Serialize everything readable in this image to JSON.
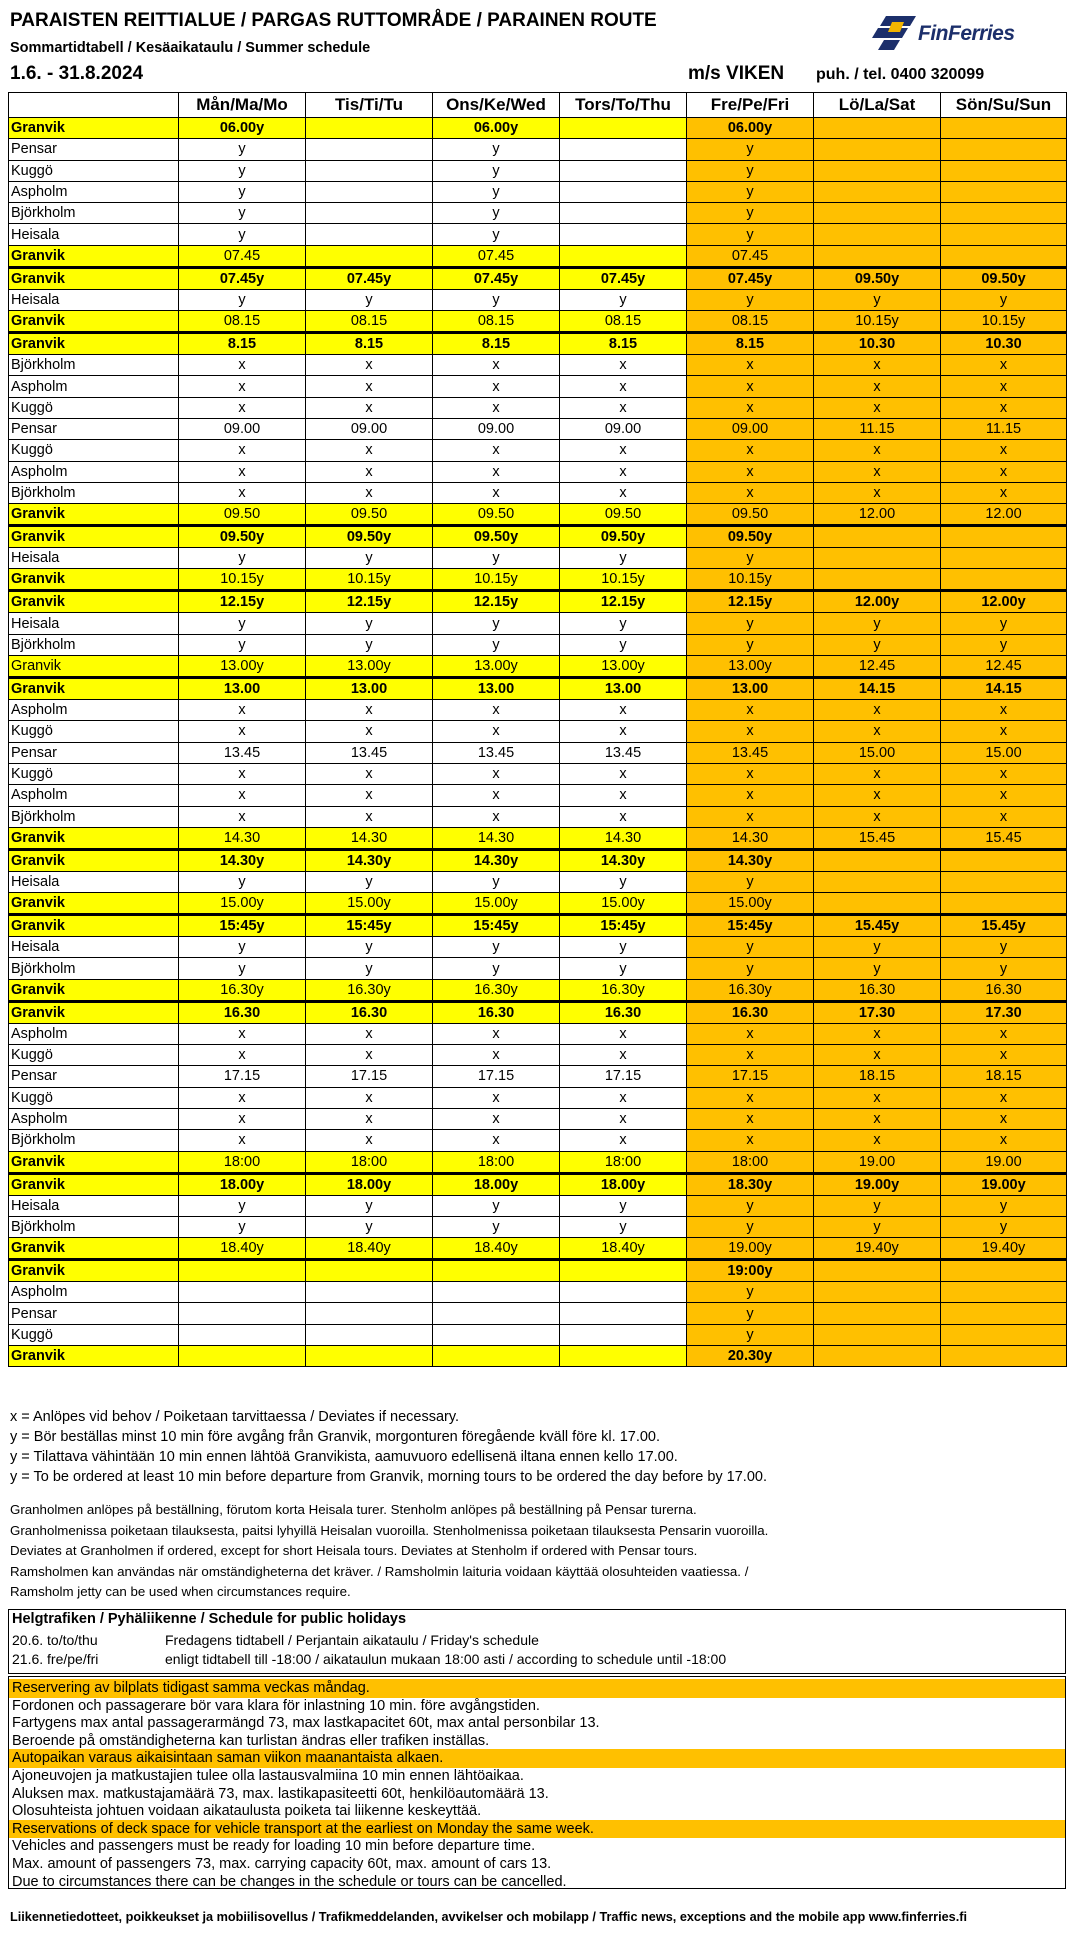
{
  "header": {
    "title": "PARAISTEN REITTIALUE / PARGAS RUTTOMRÅDE / PARAINEN ROUTE",
    "subtitle": "Sommartidtabell / Kesäaikataulu / Summer schedule",
    "dates": "1.6. - 31.8.2024",
    "ship": "m/s VIKEN",
    "phone": "puh. / tel. 0400 320099",
    "logo_text": "FinFerries"
  },
  "colors": {
    "yellow": "#ffff00",
    "orange": "#ffc000",
    "logo_blue": "#1c2f6b"
  },
  "timetable": {
    "days": [
      "Mån/Ma/Mo",
      "Tis/Ti/Tu",
      "Ons/Ke/Wed",
      "Tors/To/Thu",
      "Fre/Pe/Fri",
      "Lö/La/Sat",
      "Sön/Su/Sun"
    ],
    "rows": [
      {
        "stop": "Granvik",
        "times": [
          "06.00y",
          "",
          "06.00y",
          "",
          "06.00y",
          "",
          ""
        ],
        "style": "y b"
      },
      {
        "stop": "Pensar",
        "times": [
          "y",
          "",
          "y",
          "",
          "y",
          "",
          ""
        ],
        "style": ""
      },
      {
        "stop": "Kuggö",
        "times": [
          "y",
          "",
          "y",
          "",
          "y",
          "",
          ""
        ],
        "style": ""
      },
      {
        "stop": "Aspholm",
        "times": [
          "y",
          "",
          "y",
          "",
          "y",
          "",
          ""
        ],
        "style": ""
      },
      {
        "stop": "Björkholm",
        "times": [
          "y",
          "",
          "y",
          "",
          "y",
          "",
          ""
        ],
        "style": ""
      },
      {
        "stop": "Heisala",
        "times": [
          "y",
          "",
          "y",
          "",
          "y",
          "",
          ""
        ],
        "style": ""
      },
      {
        "stop": "Granvik",
        "times": [
          "07.45",
          "",
          "07.45",
          "",
          "07.45",
          "",
          ""
        ],
        "style": "y bs"
      },
      {
        "stop": "Granvik",
        "times": [
          "07.45y",
          "07.45y",
          "07.45y",
          "07.45y",
          "07.45y",
          "09.50y",
          "09.50y"
        ],
        "style": "y b gs"
      },
      {
        "stop": "Heisala",
        "times": [
          "y",
          "y",
          "y",
          "y",
          "y",
          "y",
          "y"
        ],
        "style": ""
      },
      {
        "stop": "Granvik",
        "times": [
          "08.15",
          "08.15",
          "08.15",
          "08.15",
          "08.15",
          "10.15y",
          "10.15y"
        ],
        "style": "y bs"
      },
      {
        "stop": "Granvik",
        "times": [
          "8.15",
          "8.15",
          "8.15",
          "8.15",
          "8.15",
          "10.30",
          "10.30"
        ],
        "style": "y b gs"
      },
      {
        "stop": "Björkholm",
        "times": [
          "x",
          "x",
          "x",
          "x",
          "x",
          "x",
          "x"
        ],
        "style": ""
      },
      {
        "stop": "Aspholm",
        "times": [
          "x",
          "x",
          "x",
          "x",
          "x",
          "x",
          "x"
        ],
        "style": ""
      },
      {
        "stop": "Kuggö",
        "times": [
          "x",
          "x",
          "x",
          "x",
          "x",
          "x",
          "x"
        ],
        "style": ""
      },
      {
        "stop": "Pensar",
        "times": [
          "09.00",
          "09.00",
          "09.00",
          "09.00",
          "09.00",
          "11.15",
          "11.15"
        ],
        "style": ""
      },
      {
        "stop": "Kuggö",
        "times": [
          "x",
          "x",
          "x",
          "x",
          "x",
          "x",
          "x"
        ],
        "style": ""
      },
      {
        "stop": "Aspholm",
        "times": [
          "x",
          "x",
          "x",
          "x",
          "x",
          "x",
          "x"
        ],
        "style": ""
      },
      {
        "stop": "Björkholm",
        "times": [
          "x",
          "x",
          "x",
          "x",
          "x",
          "x",
          "x"
        ],
        "style": ""
      },
      {
        "stop": "Granvik",
        "times": [
          "09.50",
          "09.50",
          "09.50",
          "09.50",
          "09.50",
          "12.00",
          "12.00"
        ],
        "style": "y bs"
      },
      {
        "stop": "Granvik",
        "times": [
          "09.50y",
          "09.50y",
          "09.50y",
          "09.50y",
          "09.50y",
          "",
          ""
        ],
        "style": "y b gs"
      },
      {
        "stop": "Heisala",
        "times": [
          "y",
          "y",
          "y",
          "y",
          "y",
          "",
          ""
        ],
        "style": ""
      },
      {
        "stop": "Granvik",
        "times": [
          "10.15y",
          "10.15y",
          "10.15y",
          "10.15y",
          "10.15y",
          "",
          ""
        ],
        "style": "y bs"
      },
      {
        "stop": "Granvik",
        "times": [
          "12.15y",
          "12.15y",
          "12.15y",
          "12.15y",
          "12.15y",
          "12.00y",
          "12.00y"
        ],
        "style": "y b gs"
      },
      {
        "stop": "Heisala",
        "times": [
          "y",
          "y",
          "y",
          "y",
          "y",
          "y",
          "y"
        ],
        "style": ""
      },
      {
        "stop": "Björkholm",
        "times": [
          "y",
          "y",
          "y",
          "y",
          "y",
          "y",
          "y"
        ],
        "style": ""
      },
      {
        "stop": "Granvik",
        "times": [
          "13.00y",
          "13.00y",
          "13.00y",
          "13.00y",
          "13.00y",
          "12.45",
          "12.45"
        ],
        "style": "y"
      },
      {
        "stop": "Granvik",
        "times": [
          "13.00",
          "13.00",
          "13.00",
          "13.00",
          "13.00",
          "14.15",
          "14.15"
        ],
        "style": "y b gs"
      },
      {
        "stop": "Aspholm",
        "times": [
          "x",
          "x",
          "x",
          "x",
          "x",
          "x",
          "x"
        ],
        "style": ""
      },
      {
        "stop": "Kuggö",
        "times": [
          "x",
          "x",
          "x",
          "x",
          "x",
          "x",
          "x"
        ],
        "style": ""
      },
      {
        "stop": "Pensar",
        "times": [
          "13.45",
          "13.45",
          "13.45",
          "13.45",
          "13.45",
          "15.00",
          "15.00"
        ],
        "style": ""
      },
      {
        "stop": "Kuggö",
        "times": [
          "x",
          "x",
          "x",
          "x",
          "x",
          "x",
          "x"
        ],
        "style": ""
      },
      {
        "stop": "Aspholm",
        "times": [
          "x",
          "x",
          "x",
          "x",
          "x",
          "x",
          "x"
        ],
        "style": ""
      },
      {
        "stop": "Björkholm",
        "times": [
          "x",
          "x",
          "x",
          "x",
          "x",
          "x",
          "x"
        ],
        "style": ""
      },
      {
        "stop": "Granvik",
        "times": [
          "14.30",
          "14.30",
          "14.30",
          "14.30",
          "14.30",
          "15.45",
          "15.45"
        ],
        "style": "y bs"
      },
      {
        "stop": "Granvik",
        "times": [
          "14.30y",
          "14.30y",
          "14.30y",
          "14.30y",
          "14.30y",
          "",
          ""
        ],
        "style": "y b gs"
      },
      {
        "stop": "Heisala",
        "times": [
          "y",
          "y",
          "y",
          "y",
          "y",
          "",
          ""
        ],
        "style": ""
      },
      {
        "stop": "Granvik",
        "times": [
          "15.00y",
          "15.00y",
          "15.00y",
          "15.00y",
          "15.00y",
          "",
          ""
        ],
        "style": "y bs"
      },
      {
        "stop": "Granvik",
        "times": [
          "15:45y",
          "15:45y",
          "15:45y",
          "15:45y",
          "15:45y",
          "15.45y",
          "15.45y"
        ],
        "style": "y b gs"
      },
      {
        "stop": "Heisala",
        "times": [
          "y",
          "y",
          "y",
          "y",
          "y",
          "y",
          "y"
        ],
        "style": ""
      },
      {
        "stop": "Björkholm",
        "times": [
          "y",
          "y",
          "y",
          "y",
          "y",
          "y",
          "y"
        ],
        "style": ""
      },
      {
        "stop": "Granvik",
        "times": [
          "16.30y",
          "16.30y",
          "16.30y",
          "16.30y",
          "16.30y",
          "16.30",
          "16.30"
        ],
        "style": "y bs"
      },
      {
        "stop": "Granvik",
        "times": [
          "16.30",
          "16.30",
          "16.30",
          "16.30",
          "16.30",
          "17.30",
          "17.30"
        ],
        "style": "y b gs"
      },
      {
        "stop": "Aspholm",
        "times": [
          "x",
          "x",
          "x",
          "x",
          "x",
          "x",
          "x"
        ],
        "style": ""
      },
      {
        "stop": "Kuggö",
        "times": [
          "x",
          "x",
          "x",
          "x",
          "x",
          "x",
          "x"
        ],
        "style": ""
      },
      {
        "stop": "Pensar",
        "times": [
          "17.15",
          "17.15",
          "17.15",
          "17.15",
          "17.15",
          "18.15",
          "18.15"
        ],
        "style": ""
      },
      {
        "stop": "Kuggö",
        "times": [
          "x",
          "x",
          "x",
          "x",
          "x",
          "x",
          "x"
        ],
        "style": ""
      },
      {
        "stop": "Aspholm",
        "times": [
          "x",
          "x",
          "x",
          "x",
          "x",
          "x",
          "x"
        ],
        "style": ""
      },
      {
        "stop": "Björkholm",
        "times": [
          "x",
          "x",
          "x",
          "x",
          "x",
          "x",
          "x"
        ],
        "style": ""
      },
      {
        "stop": "Granvik",
        "times": [
          "18:00",
          "18:00",
          "18:00",
          "18:00",
          "18:00",
          "19.00",
          "19.00"
        ],
        "style": "y bs"
      },
      {
        "stop": "Granvik",
        "times": [
          "18.00y",
          "18.00y",
          "18.00y",
          "18.00y",
          "18.30y",
          "19.00y",
          "19.00y"
        ],
        "style": "y b gs"
      },
      {
        "stop": "Heisala",
        "times": [
          "y",
          "y",
          "y",
          "y",
          "y",
          "y",
          "y"
        ],
        "style": ""
      },
      {
        "stop": "Björkholm",
        "times": [
          "y",
          "y",
          "y",
          "y",
          "y",
          "y",
          "y"
        ],
        "style": ""
      },
      {
        "stop": "Granvik",
        "times": [
          "18.40y",
          "18.40y",
          "18.40y",
          "18.40y",
          "19.00y",
          "19.40y",
          "19.40y"
        ],
        "style": "y bs"
      },
      {
        "stop": "Granvik",
        "times": [
          "",
          "",
          "",
          "",
          "19:00y",
          "",
          ""
        ],
        "style": "y b gs"
      },
      {
        "stop": "Aspholm",
        "times": [
          "",
          "",
          "",
          "",
          "y",
          "",
          ""
        ],
        "style": ""
      },
      {
        "stop": "Pensar",
        "times": [
          "",
          "",
          "",
          "",
          "y",
          "",
          ""
        ],
        "style": ""
      },
      {
        "stop": "Kuggö",
        "times": [
          "",
          "",
          "",
          "",
          "y",
          "",
          ""
        ],
        "style": ""
      },
      {
        "stop": "Granvik",
        "times": [
          "",
          "",
          "",
          "",
          "20.30y",
          "",
          ""
        ],
        "style": "y b"
      }
    ]
  },
  "notes": [
    "x = Anlöpes vid behov / Poiketaan tarvittaessa / Deviates if necessary.",
    "y = Bör beställas minst 10 min före avgång från Granvik, morgonturen föregående kväll före kl. 17.00.",
    "y = Tilattava vähintään 10 min ennen lähtöä Granvikista, aamuvuoro edellisenä iltana ennen kello 17.00.",
    "y = To be ordered at least 10 min before departure from Granvik, morning tours to be ordered the day before by 17.00."
  ],
  "notes2": [
    "Granholmen anlöpes på beställning, förutom korta Heisala turer. Stenholm anlöpes på beställning på Pensar turerna.",
    "Granholmenissa poiketaan tilauksesta, paitsi lyhyillä Heisalan vuoroilla. Stenholmenissa poiketaan tilauksesta Pensarin vuoroilla.",
    "Deviates at Granholmen if ordered, except for short Heisala tours. Deviates at Stenholm if ordered with Pensar tours.",
    "Ramsholmen kan användas när omständigheterna det kräver. / Ramsholmin laituria voidaan käyttää olosuhteiden vaatiessa. /",
    "Ramsholm jetty can be used when circumstances require."
  ],
  "holidays": {
    "title": "Helgtrafiken / Pyhäliikenne / Schedule for public holidays",
    "rows": [
      {
        "date": "20.6. to/to/thu",
        "text": "Fredagens tidtabell / Perjantain aikataulu / Friday's schedule"
      },
      {
        "date": "21.6. fre/pe/fri",
        "text": "enligt tidtabell till -18:00 / aikataulun mukaan 18:00 asti / according to schedule until -18:00"
      }
    ]
  },
  "info": [
    {
      "text": "Reservering av bilplats tidigast samma veckas måndag.",
      "hl": true
    },
    {
      "text": "Fordonen och passagerare bör vara klara för inlastning 10 min. före avgångstiden.",
      "hl": false
    },
    {
      "text": "Fartygens max antal passagerarmängd 73, max lastkapacitet 60t, max antal personbilar 13.",
      "hl": false
    },
    {
      "text": "Beroende på omständigheterna kan turlistan ändras eller trafiken inställas.",
      "hl": false
    },
    {
      "text": "Autopaikan varaus aikaisintaan saman viikon maanantaista alkaen.",
      "hl": true
    },
    {
      "text": "Ajoneuvojen ja matkustajien tulee olla lastausvalmiina 10 min ennen lähtöaikaa.",
      "hl": false
    },
    {
      "text": "Aluksen max. matkustajamäärä 73, max. lastikapasiteetti 60t, henkilöautomäärä 13.",
      "hl": false
    },
    {
      "text": "Olosuhteista johtuen voidaan aikataulusta poiketa tai liikenne keskeyttää.",
      "hl": false
    },
    {
      "text": "Reservations of deck space for vehicle transport at the earliest on Monday the same week.",
      "hl": true
    },
    {
      "text": "Vehicles and passengers must be ready for loading 10 min before departure time.",
      "hl": false
    },
    {
      "text": "Max. amount of passengers 73, max. carrying capacity 60t, max. amount of cars 13.",
      "hl": false
    },
    {
      "text": "Due to circumstances there can be changes in the schedule or tours can be cancelled.",
      "hl": false
    }
  ],
  "footer": "Liikennetiedotteet, poikkeukset ja mobiilisovellus / Trafikmeddelanden, avvikelser och mobilapp / Traffic news, exceptions and the mobile app www.finferries.fi"
}
